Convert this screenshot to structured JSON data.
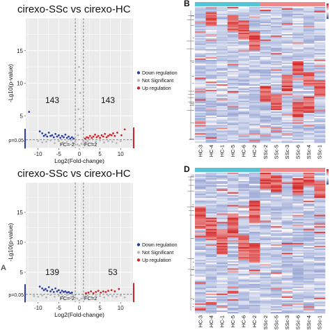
{
  "chart_data": [
    {
      "type": "scatter",
      "panel": "",
      "title": "cirexo-SSc vs cirexo-HC",
      "xlabel": "Log2(Fold-change)",
      "ylabel": "-Lg10(p-value)",
      "xlim": [
        -13,
        13
      ],
      "ylim": [
        0,
        20
      ],
      "xticks": [
        "-10",
        "-5",
        "0",
        "5",
        "10"
      ],
      "yticks": [
        "0",
        "5",
        "10",
        "15"
      ],
      "xtick_values": [
        -10,
        -5,
        0,
        5,
        10
      ],
      "ytick_values": [
        0,
        5,
        10,
        15
      ],
      "grid": true,
      "p_label": "p=0.05",
      "p_value_line": 1.3,
      "fc_labels": [
        "FC=-2",
        "FC=2"
      ],
      "fc_lines": [
        -1,
        1
      ],
      "count_down": "143",
      "count_up": "143",
      "legend_placement": "right",
      "legend": [
        {
          "name": "Down regulation",
          "color": "#2b3fa8"
        },
        {
          "name": "Not Significant",
          "color": "#b8b8b8"
        },
        {
          "name": "Up regulation",
          "color": "#d6232a"
        }
      ],
      "series": [
        {
          "name": "Down regulation",
          "color": "#2b3fa8",
          "points": [
            [
              -12.2,
              5.6
            ],
            [
              -9.6,
              2.6
            ],
            [
              -9.0,
              2.3
            ],
            [
              -8.6,
              1.9
            ],
            [
              -8.2,
              2.1
            ],
            [
              -7.8,
              1.8
            ],
            [
              -7.4,
              2.4
            ],
            [
              -7.0,
              1.9
            ],
            [
              -6.6,
              2.0
            ],
            [
              -6.2,
              1.7
            ],
            [
              -5.8,
              2.2
            ],
            [
              -5.4,
              1.8
            ],
            [
              -5.0,
              2.0
            ],
            [
              -4.6,
              1.6
            ],
            [
              -4.2,
              1.9
            ],
            [
              -3.8,
              1.7
            ],
            [
              -3.4,
              2.1
            ],
            [
              -3.0,
              1.6
            ],
            [
              -2.6,
              1.8
            ],
            [
              -2.2,
              1.5
            ],
            [
              -1.8,
              1.7
            ],
            [
              -1.4,
              1.5
            ]
          ]
        },
        {
          "name": "Up regulation",
          "color": "#d6232a",
          "points": [
            [
              1.4,
              1.5
            ],
            [
              1.8,
              1.7
            ],
            [
              2.2,
              1.6
            ],
            [
              2.6,
              1.9
            ],
            [
              3.0,
              1.6
            ],
            [
              3.4,
              1.8
            ],
            [
              3.8,
              2.1
            ],
            [
              4.2,
              1.7
            ],
            [
              4.6,
              1.9
            ],
            [
              5.0,
              1.6
            ],
            [
              5.4,
              2.0
            ],
            [
              5.8,
              1.8
            ],
            [
              6.2,
              2.2
            ],
            [
              6.6,
              1.7
            ],
            [
              7.0,
              1.9
            ],
            [
              7.4,
              2.1
            ],
            [
              7.8,
              2.0
            ],
            [
              8.2,
              2.3
            ],
            [
              8.6,
              1.9
            ],
            [
              9.2,
              2.4
            ],
            [
              10.2,
              2.0
            ],
            [
              11.0,
              2.9
            ]
          ]
        },
        {
          "name": "Not Significant",
          "color": "#b8b8b8",
          "points": [
            [
              -10,
              1.1
            ],
            [
              -9,
              0.9
            ],
            [
              -8,
              1.0
            ],
            [
              -7,
              1.2
            ],
            [
              -6,
              0.8
            ],
            [
              -5,
              1.1
            ],
            [
              -4,
              0.9
            ],
            [
              -3,
              1.0
            ],
            [
              -2,
              1.2
            ],
            [
              -1.5,
              0.8
            ],
            [
              -1,
              1.0
            ],
            [
              -0.5,
              0.6
            ],
            [
              0,
              0.4
            ],
            [
              0.5,
              0.7
            ],
            [
              1,
              1.0
            ],
            [
              1.5,
              0.9
            ],
            [
              2,
              1.1
            ],
            [
              3,
              0.8
            ],
            [
              4,
              1.0
            ],
            [
              5,
              1.2
            ],
            [
              6,
              0.9
            ],
            [
              7,
              1.1
            ],
            [
              8,
              1.0
            ],
            [
              9,
              0.8
            ],
            [
              10,
              1.1
            ],
            [
              -0.3,
              2.0
            ],
            [
              0.3,
              3.0
            ],
            [
              0.1,
              4.5
            ],
            [
              -0.2,
              6.0
            ],
            [
              0.2,
              8.5
            ],
            [
              0,
              10.5
            ],
            [
              -0.1,
              12.5
            ]
          ]
        }
      ]
    },
    {
      "type": "heatmap",
      "panel": "B",
      "columns": [
        "HC-3",
        "HC-4",
        "HC-1",
        "HC-5",
        "HC-6",
        "HC-2",
        "SSc-2",
        "SSc-5",
        "SSc-3",
        "SSc-6",
        "SSc-4",
        "SSc-1"
      ],
      "groups": [
        {
          "name": "HC",
          "color": "#55c5d6"
        },
        {
          "name": "SSc",
          "color": "#f08a8a"
        }
      ],
      "color_low": "#4a63b4",
      "color_mid": "#ffffff",
      "color_high": "#d62a2a",
      "rows": 100
    },
    {
      "type": "scatter",
      "panel": "",
      "title": "cirexo-SSc vs cirexo-HC",
      "xlabel": "Log2(Fold-change)",
      "ylabel": "-Lg10(p-value)",
      "xlim": [
        -13,
        13
      ],
      "ylim": [
        0,
        20
      ],
      "xticks": [
        "-10",
        "-5",
        "0",
        "5",
        "10"
      ],
      "yticks": [
        "0",
        "5",
        "10",
        "15"
      ],
      "xtick_values": [
        -10,
        -5,
        0,
        5,
        10
      ],
      "ytick_values": [
        0,
        5,
        10,
        15
      ],
      "grid": true,
      "p_label": "p=0.05",
      "p_value_line": 1.3,
      "fc_labels": [
        "FC=-2",
        "FC=2"
      ],
      "fc_lines": [
        -1,
        1
      ],
      "count_down": "139",
      "count_up": "53",
      "legend_placement": "right",
      "legend": [
        {
          "name": "Down regulation",
          "color": "#2b3fa8"
        },
        {
          "name": "Not Significant",
          "color": "#b8b8b8"
        },
        {
          "name": "Up regulation",
          "color": "#d6232a"
        }
      ],
      "series": [
        {
          "name": "Down regulation",
          "color": "#2b3fa8",
          "points": [
            [
              -9.6,
              2.6
            ],
            [
              -9.0,
              2.3
            ],
            [
              -8.6,
              2.0
            ],
            [
              -8.2,
              2.2
            ],
            [
              -7.8,
              1.9
            ],
            [
              -7.4,
              2.5
            ],
            [
              -7.0,
              1.8
            ],
            [
              -6.6,
              2.1
            ],
            [
              -6.2,
              1.7
            ],
            [
              -5.8,
              2.3
            ],
            [
              -5.4,
              1.8
            ],
            [
              -5.0,
              2.0
            ],
            [
              -4.6,
              1.6
            ],
            [
              -4.2,
              1.9
            ],
            [
              -3.8,
              1.7
            ],
            [
              -3.4,
              1.8
            ],
            [
              -3.0,
              1.6
            ],
            [
              -2.6,
              1.7
            ],
            [
              -2.2,
              1.5
            ],
            [
              -1.8,
              1.6
            ]
          ]
        },
        {
          "name": "Up regulation",
          "color": "#d6232a",
          "points": [
            [
              1.6,
              1.5
            ],
            [
              2.2,
              1.6
            ],
            [
              2.8,
              1.8
            ],
            [
              3.4,
              1.5
            ],
            [
              4.0,
              1.7
            ],
            [
              4.6,
              1.9
            ],
            [
              5.2,
              1.6
            ],
            [
              5.8,
              1.8
            ],
            [
              6.4,
              1.7
            ],
            [
              7.0,
              1.9
            ],
            [
              7.8,
              2.0
            ],
            [
              8.6,
              1.8
            ],
            [
              9.6,
              2.2
            ]
          ]
        },
        {
          "name": "Not Significant",
          "color": "#b8b8b8",
          "points": [
            [
              -11,
              1.0
            ],
            [
              -10,
              0.9
            ],
            [
              -9,
              1.1
            ],
            [
              -8,
              0.8
            ],
            [
              -7,
              1.2
            ],
            [
              -6,
              0.9
            ],
            [
              -5,
              1.1
            ],
            [
              -4,
              1.0
            ],
            [
              -3,
              1.2
            ],
            [
              -2,
              0.9
            ],
            [
              -1.5,
              1.1
            ],
            [
              -1,
              0.8
            ],
            [
              -0.5,
              0.6
            ],
            [
              0,
              0.3
            ],
            [
              0.5,
              0.6
            ],
            [
              1,
              0.9
            ],
            [
              1.5,
              1.0
            ],
            [
              2,
              1.1
            ],
            [
              3,
              0.9
            ],
            [
              4,
              1.2
            ],
            [
              5,
              1.0
            ],
            [
              6,
              0.8
            ],
            [
              7,
              1.1
            ],
            [
              8,
              1.0
            ],
            [
              9,
              0.9
            ],
            [
              10,
              1.1
            ],
            [
              11,
              0.8
            ]
          ]
        }
      ]
    },
    {
      "type": "heatmap",
      "panel": "D",
      "columns": [
        "HC-3",
        "HC-4",
        "HC-1",
        "HC-5",
        "HC-6",
        "HC-2",
        "SSc-2",
        "SSc-5",
        "SSc-3",
        "SSc-6",
        "SSc-4",
        "SSc-1"
      ],
      "groups": [
        {
          "name": "HC",
          "color": "#55c5d6"
        },
        {
          "name": "SSc",
          "color": "#f08a8a"
        }
      ],
      "color_low": "#4a63b4",
      "color_mid": "#ffffff",
      "color_high": "#d62a2a",
      "rows": 100
    }
  ]
}
